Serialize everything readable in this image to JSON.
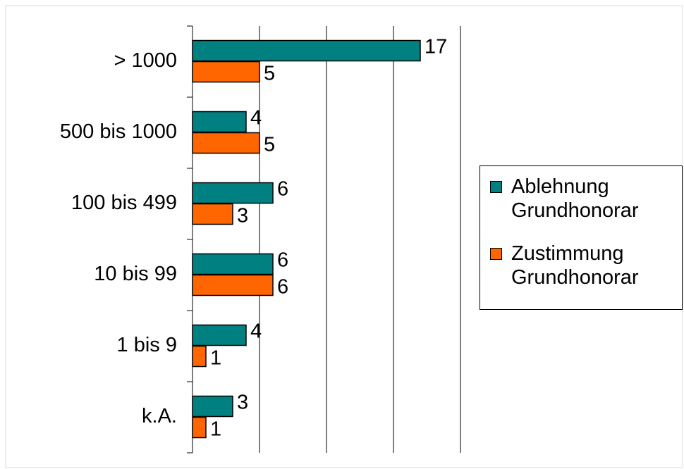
{
  "chart_data": {
    "type": "barh",
    "categories": [
      "> 1000",
      "500 bis 1000",
      "100 bis 499",
      "10 bis 99",
      "1 bis 9",
      "k.A."
    ],
    "series": [
      {
        "name": "Ablehnung Grundhonorar",
        "color": "#008080",
        "values": [
          17,
          4,
          6,
          6,
          4,
          3
        ]
      },
      {
        "name": "Zustimmung Grundhonorar",
        "color": "#ff6600",
        "values": [
          5,
          5,
          3,
          6,
          1,
          1
        ]
      }
    ],
    "xlim": [
      0,
      20
    ],
    "xticks": [
      0,
      5,
      10,
      15,
      20
    ],
    "grid": true,
    "legend": "right"
  }
}
